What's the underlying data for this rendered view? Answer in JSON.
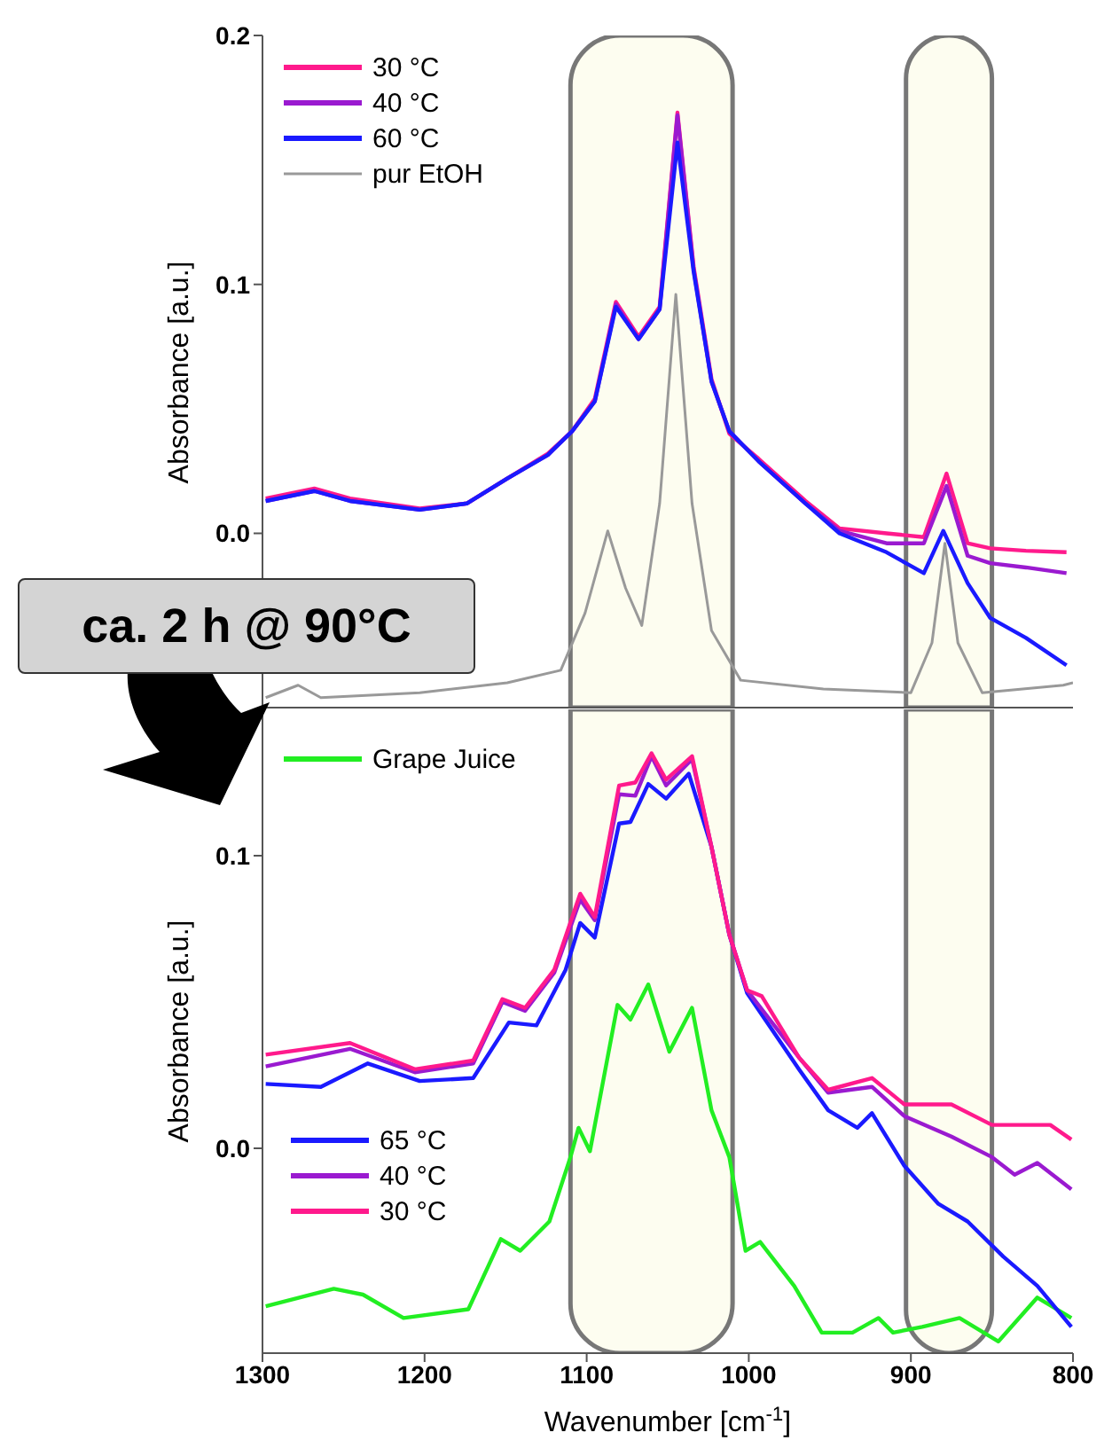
{
  "chart_data": [
    {
      "type": "line",
      "ylabel": "Absorbance [a.u.]",
      "xlim": [
        1300,
        800
      ],
      "xticks": [
        1300,
        1200,
        1100,
        1000,
        900,
        800
      ],
      "ylim": [
        -0.07,
        0.2
      ],
      "yticks": [
        {
          "value": 0,
          "label": "0.0"
        },
        {
          "value": 0.1,
          "label": "0.1"
        },
        {
          "value": 0.2,
          "label": "0.2"
        }
      ],
      "tick_labels": "y",
      "legend": "top left",
      "annotations": [
        "ca. 2 h @ 90°C"
      ],
      "bands": [
        {
          "axis": "x",
          "from": 1110,
          "to": 1010,
          "label": null,
          "color": "#fdfdf0"
        },
        {
          "axis": "x",
          "from": 903,
          "to": 850,
          "label": null,
          "color": "#fdfdf0"
        }
      ],
      "series": [
        {
          "name": "30 °C",
          "color": "#ff1a8c",
          "x": [
            1298,
            1268,
            1246,
            1203,
            1174,
            1149,
            1124,
            1109,
            1095,
            1082,
            1068,
            1055,
            1044,
            1034,
            1023,
            1012,
            994,
            965,
            944,
            915,
            892,
            878,
            865,
            851,
            829,
            804
          ],
          "values": [
            0.014,
            0.018,
            0.014,
            0.01,
            0.012,
            0.022,
            0.032,
            0.041,
            0.054,
            0.093,
            0.079,
            0.091,
            0.169,
            0.107,
            0.062,
            0.04,
            0.03,
            0.013,
            0.002,
            0.0,
            -0.0015,
            0.024,
            -0.004,
            -0.006,
            -0.007,
            -0.0076
          ]
        },
        {
          "name": "40 °C",
          "color": "#9a1ad0",
          "x": [
            1298,
            1268,
            1246,
            1203,
            1174,
            1149,
            1124,
            1109,
            1095,
            1082,
            1068,
            1055,
            1044,
            1034,
            1023,
            1012,
            994,
            965,
            944,
            915,
            892,
            878,
            865,
            851,
            829,
            804
          ],
          "values": [
            0.013,
            0.017,
            0.013,
            0.0095,
            0.012,
            0.022,
            0.0315,
            0.041,
            0.053,
            0.092,
            0.078,
            0.09,
            0.168,
            0.106,
            0.061,
            0.041,
            0.029,
            0.012,
            0.001,
            -0.004,
            -0.004,
            0.019,
            -0.009,
            -0.012,
            -0.0137,
            -0.016
          ]
        },
        {
          "name": "60 °C",
          "color": "#1a1aff",
          "x": [
            1298,
            1268,
            1246,
            1203,
            1174,
            1149,
            1124,
            1109,
            1095,
            1082,
            1068,
            1055,
            1044,
            1034,
            1023,
            1012,
            994,
            965,
            944,
            915,
            892,
            880,
            865,
            851,
            829,
            804
          ],
          "values": [
            0.013,
            0.017,
            0.013,
            0.0095,
            0.012,
            0.022,
            0.0315,
            0.041,
            0.053,
            0.091,
            0.078,
            0.09,
            0.157,
            0.105,
            0.061,
            0.041,
            0.029,
            0.012,
            0.0,
            -0.0076,
            -0.016,
            0.001,
            -0.02,
            -0.034,
            -0.042,
            -0.053
          ]
        },
        {
          "name": "pur EtOH",
          "color": "#999999",
          "x": [
            1298,
            1278,
            1264,
            1203,
            1149,
            1116,
            1101,
            1087,
            1076,
            1066,
            1055,
            1045,
            1035,
            1023,
            1005,
            954,
            900,
            887,
            879,
            871,
            856,
            806,
            800
          ],
          "values": [
            -0.066,
            -0.061,
            -0.066,
            -0.064,
            -0.06,
            -0.055,
            -0.032,
            0.001,
            -0.022,
            -0.037,
            0.012,
            0.096,
            0.012,
            -0.039,
            -0.059,
            -0.0625,
            -0.064,
            -0.044,
            -0.004,
            -0.044,
            -0.064,
            -0.061,
            -0.06
          ]
        }
      ]
    },
    {
      "type": "line",
      "xlabel": "Wavenumber [cm$^{-1}$]",
      "ylabel": "Absorbance [a.u.]",
      "xlim": [
        1300,
        800
      ],
      "xticks": [
        1300,
        1200,
        1100,
        1000,
        900,
        800
      ],
      "ylim": [
        -0.07,
        0.15
      ],
      "yticks": [
        {
          "value": 0,
          "label": "0.0"
        },
        {
          "value": 0.1,
          "label": "0.1"
        }
      ],
      "legend": "left",
      "bands": [
        {
          "axis": "x",
          "from": 1110,
          "to": 1010,
          "label": null,
          "color": "#fdfdf0"
        },
        {
          "axis": "x",
          "from": 903,
          "to": 850,
          "label": null,
          "color": "#fdfdf0"
        }
      ],
      "series": [
        {
          "name": "Grape Juice",
          "color": "#22ee22",
          "x": [
            1298,
            1256,
            1238,
            1213,
            1173,
            1153,
            1141,
            1123,
            1110,
            1105,
            1098,
            1081,
            1073,
            1062,
            1049,
            1035,
            1023,
            1012,
            1002,
            993,
            972,
            955,
            936,
            920,
            911,
            893,
            870,
            846,
            822,
            801
          ],
          "values": [
            -0.054,
            -0.048,
            -0.05,
            -0.058,
            -0.055,
            -0.031,
            -0.035,
            -0.025,
            -0.003,
            0.007,
            -0.001,
            0.049,
            0.044,
            0.056,
            0.033,
            0.048,
            0.013,
            -0.003,
            -0.035,
            -0.032,
            -0.047,
            -0.063,
            -0.063,
            -0.058,
            -0.063,
            -0.061,
            -0.058,
            -0.066,
            -0.051,
            -0.058
          ]
        },
        {
          "name": "65 °C",
          "color": "#1a1aff",
          "x": [
            1298,
            1264,
            1235,
            1203,
            1170,
            1148,
            1131,
            1113,
            1104,
            1095,
            1080,
            1073,
            1062,
            1051,
            1037,
            1023,
            1012,
            1001,
            969,
            951,
            933,
            924,
            904,
            883,
            865,
            843,
            822,
            801
          ],
          "values": [
            0.022,
            0.021,
            0.029,
            0.023,
            0.024,
            0.043,
            0.042,
            0.061,
            0.077,
            0.072,
            0.111,
            0.1115,
            0.1245,
            0.1195,
            0.128,
            0.103,
            0.073,
            0.053,
            0.027,
            0.013,
            0.007,
            0.012,
            -0.006,
            -0.019,
            -0.025,
            -0.037,
            -0.047,
            -0.061
          ]
        },
        {
          "name": "40 °C",
          "color": "#9a1ad0",
          "x": [
            1298,
            1246,
            1206,
            1170,
            1152,
            1138,
            1120,
            1104,
            1095,
            1080,
            1070,
            1060,
            1051,
            1035,
            1023,
            1012,
            1001,
            969,
            951,
            924,
            904,
            875,
            850,
            836,
            822,
            801
          ],
          "values": [
            0.028,
            0.034,
            0.026,
            0.029,
            0.05,
            0.047,
            0.06,
            0.085,
            0.078,
            0.121,
            0.1205,
            0.134,
            0.124,
            0.133,
            0.103,
            0.073,
            0.054,
            0.031,
            0.019,
            0.021,
            0.011,
            0.004,
            -0.003,
            -0.009,
            -0.005,
            -0.014
          ]
        },
        {
          "name": "30 °C",
          "color": "#ff1a8c",
          "x": [
            1298,
            1246,
            1206,
            1170,
            1152,
            1138,
            1120,
            1104,
            1095,
            1080,
            1070,
            1060,
            1051,
            1035,
            1023,
            1012,
            1001,
            992,
            969,
            951,
            924,
            904,
            875,
            850,
            836,
            814,
            801
          ],
          "values": [
            0.032,
            0.036,
            0.027,
            0.03,
            0.051,
            0.048,
            0.061,
            0.087,
            0.079,
            0.124,
            0.125,
            0.135,
            0.126,
            0.134,
            0.103,
            0.073,
            0.054,
            0.052,
            0.031,
            0.02,
            0.024,
            0.015,
            0.015,
            0.008,
            0.008,
            0.008,
            0.003
          ]
        }
      ]
    }
  ]
}
